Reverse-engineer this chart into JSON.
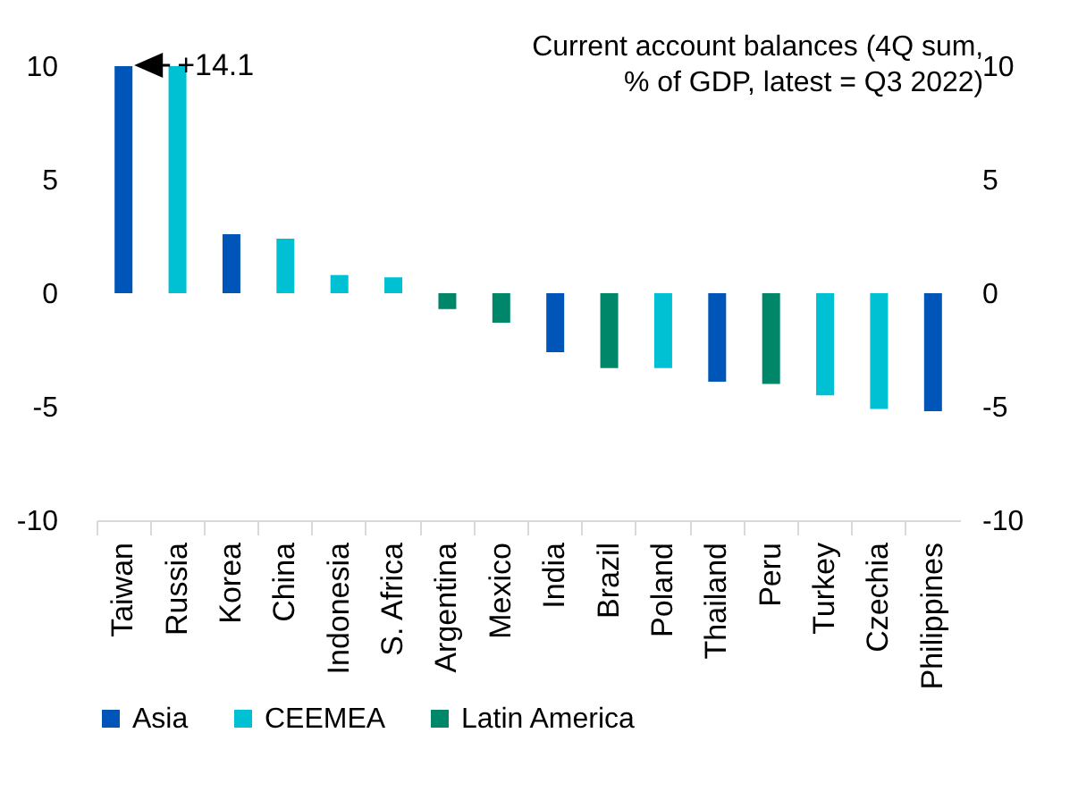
{
  "chart_data": {
    "type": "bar",
    "title": [
      "Current account balances (4Q sum,",
      "% of GDP, latest = Q3 2022)"
    ],
    "categories": [
      "Taiwan",
      "Russia",
      "Korea",
      "China",
      "Indonesia",
      "S. Africa",
      "Argentina",
      "Mexico",
      "India",
      "Brazil",
      "Poland",
      "Thailand",
      "Peru",
      "Turkey",
      "Czechia",
      "Philippines"
    ],
    "series": [
      {
        "name": "Asia",
        "color": "#0055b8",
        "values": [
          10,
          null,
          2.6,
          null,
          null,
          null,
          null,
          null,
          -2.6,
          null,
          null,
          -3.9,
          null,
          null,
          null,
          -5.2
        ]
      },
      {
        "name": "CEEMEA",
        "color": "#00c0d4",
        "values": [
          null,
          10,
          null,
          2.4,
          0.8,
          0.7,
          null,
          null,
          null,
          null,
          -3.3,
          null,
          null,
          -4.5,
          -5.1,
          null
        ]
      },
      {
        "name": "Latin America",
        "color": "#00876a",
        "values": [
          null,
          null,
          null,
          null,
          null,
          null,
          -0.7,
          -1.3,
          null,
          -3.3,
          null,
          null,
          -4.0,
          null,
          null,
          null
        ]
      }
    ],
    "ylim": [
      -10,
      10
    ],
    "yticks": [
      -10,
      -5,
      0,
      5,
      10
    ],
    "y2lim": [
      -10,
      10
    ],
    "y2ticks": [
      -10,
      -5,
      0,
      5,
      10
    ],
    "annotations": [
      {
        "text": "+14.1",
        "x": "Taiwan",
        "y": 10
      }
    ],
    "legend": "bottom",
    "grid": false
  }
}
